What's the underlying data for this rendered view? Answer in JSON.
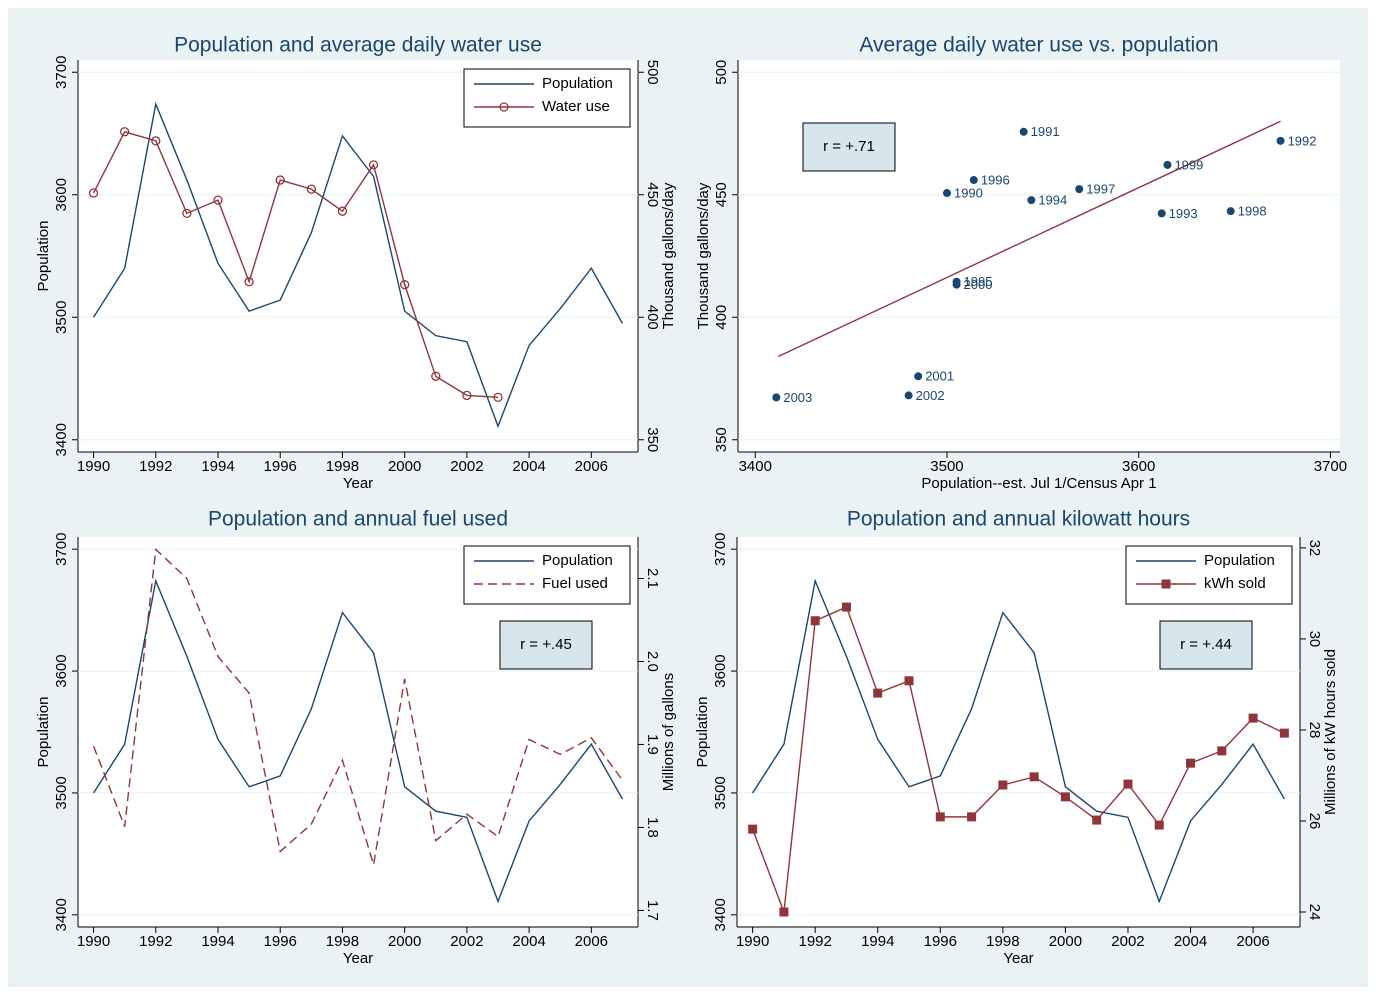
{
  "chart_data": [
    {
      "type": "line",
      "title": "Population and average daily water use",
      "x": [
        1990,
        1991,
        1992,
        1993,
        1994,
        1995,
        1996,
        1997,
        1998,
        1999,
        2000,
        2001,
        2002,
        2003,
        2004,
        2005,
        2006,
        2007
      ],
      "xlim": [
        1989.5,
        2007.5
      ],
      "xticks": [
        1990,
        1992,
        1994,
        1996,
        1998,
        2000,
        2002,
        2004,
        2006
      ],
      "x_label": "Year",
      "y_label": "Population",
      "ylim": [
        3390,
        3710
      ],
      "yticks": [
        3400,
        3500,
        3600,
        3700
      ],
      "y2_label": "Thousand gallons/day",
      "y2lim": [
        345,
        505
      ],
      "y2ticks": [
        350,
        400,
        450,
        500
      ],
      "grid": true,
      "legend": "top-right",
      "series": [
        {
          "name": "Population",
          "color": "#1a476f",
          "values": [
            3500,
            3540,
            3674,
            3612,
            3544,
            3505,
            3514,
            3569,
            3648,
            3615,
            3505,
            3485,
            3480,
            3411,
            3477,
            3507,
            3540,
            3495
          ]
        },
        {
          "name": "Water use",
          "color": "#90353b",
          "axis": "y2",
          "marker": "hollow-circle",
          "values": [
            450.7,
            475.7,
            472,
            442.4,
            447.8,
            414.5,
            456,
            452.3,
            443.3,
            462.2,
            413.3,
            375.9,
            368.1,
            367.3,
            null,
            null,
            null,
            null
          ]
        }
      ]
    },
    {
      "type": "scatter",
      "title": "Average daily water use vs. population",
      "x_label": "Population--est. Jul 1/Census Apr 1",
      "y_label": "Thousand gallons/day",
      "xlim": [
        3391,
        3705
      ],
      "xticks": [
        3400,
        3500,
        3600,
        3700
      ],
      "ylim": [
        345,
        505
      ],
      "yticks": [
        350,
        400,
        450,
        500
      ],
      "grid": true,
      "annotation": "r = +.71",
      "color": "#1a476f",
      "x": [
        3500,
        3540,
        3674,
        3612,
        3544,
        3505,
        3514,
        3569,
        3648,
        3615,
        3505,
        3485,
        3480,
        3411
      ],
      "y": [
        450.7,
        475.7,
        472,
        442.4,
        447.8,
        414.5,
        456,
        452.3,
        443.3,
        462.2,
        413.3,
        375.9,
        368.1,
        367.3
      ],
      "point_labels": [
        "1990",
        "1991",
        "1992",
        "1993",
        "1994",
        "1995",
        "1996",
        "1997",
        "1998",
        "1999",
        "2000",
        "2001",
        "2002",
        "2003"
      ],
      "fit_line": {
        "color": "#90353b",
        "x": [
          3412,
          3674
        ],
        "y": [
          384,
          480
        ]
      }
    },
    {
      "type": "line",
      "title": "Population and annual fuel used",
      "x": [
        1990,
        1991,
        1992,
        1993,
        1994,
        1995,
        1996,
        1997,
        1998,
        1999,
        2000,
        2001,
        2002,
        2003,
        2004,
        2005,
        2006,
        2007
      ],
      "xlim": [
        1989.5,
        2007.5
      ],
      "xticks": [
        1990,
        1992,
        1994,
        1996,
        1998,
        2000,
        2002,
        2004,
        2006
      ],
      "x_label": "Year",
      "y_label": "Population",
      "ylim": [
        3390,
        3710
      ],
      "yticks": [
        3400,
        3500,
        3600,
        3700
      ],
      "y2_label": "Millions of gallons",
      "y2lim": [
        1.68,
        2.15
      ],
      "y2ticks": [
        1.7,
        1.8,
        1.9,
        {
          "value": 2,
          "label": "2.0"
        },
        2.1
      ],
      "grid": true,
      "legend": "top-right",
      "annotation": "r = +.45",
      "series": [
        {
          "name": "Population",
          "color": "#1a476f",
          "values": [
            3500,
            3540,
            3674,
            3612,
            3544,
            3505,
            3514,
            3569,
            3648,
            3615,
            3505,
            3485,
            3480,
            3411,
            3477,
            3507,
            3540,
            3495
          ]
        },
        {
          "name": "Fuel used",
          "color": "#90353b",
          "axis": "y2",
          "dash": "dashed",
          "values": [
            1.898,
            1.801,
            2.135,
            2.1,
            2.006,
            1.962,
            1.771,
            1.804,
            1.881,
            1.755,
            1.979,
            1.784,
            1.816,
            1.789,
            1.906,
            1.888,
            1.908,
            1.857
          ]
        }
      ]
    },
    {
      "type": "line",
      "title": "Population and annual kilowatt hours",
      "x": [
        1990,
        1991,
        1992,
        1993,
        1994,
        1995,
        1996,
        1997,
        1998,
        1999,
        2000,
        2001,
        2002,
        2003,
        2004,
        2005,
        2006,
        2007
      ],
      "xlim": [
        1989.5,
        2007.5
      ],
      "xticks": [
        1990,
        1992,
        1994,
        1996,
        1998,
        2000,
        2002,
        2004,
        2006
      ],
      "x_label": "Year",
      "y_label": "Population",
      "ylim": [
        3390,
        3710
      ],
      "yticks": [
        3400,
        3500,
        3600,
        3700
      ],
      "y2_label": "Millions of kW hours sold",
      "y2lim": [
        23.67,
        32.24
      ],
      "y2ticks": [
        24,
        26,
        28,
        30,
        32
      ],
      "grid": true,
      "legend": "top-right",
      "annotation": "r = +.44",
      "series": [
        {
          "name": "Population",
          "color": "#1a476f",
          "values": [
            3500,
            3540,
            3674,
            3612,
            3544,
            3505,
            3514,
            3569,
            3648,
            3615,
            3505,
            3485,
            3480,
            3411,
            3477,
            3507,
            3540,
            3495
          ]
        },
        {
          "name": "kWh sold",
          "color": "#90353b",
          "axis": "y2",
          "marker": "square",
          "values": [
            25.82,
            24.0,
            30.4,
            30.7,
            28.81,
            29.08,
            26.09,
            26.09,
            26.79,
            26.97,
            26.53,
            26.02,
            26.81,
            25.91,
            27.27,
            27.54,
            28.26,
            27.93
          ]
        }
      ]
    }
  ]
}
